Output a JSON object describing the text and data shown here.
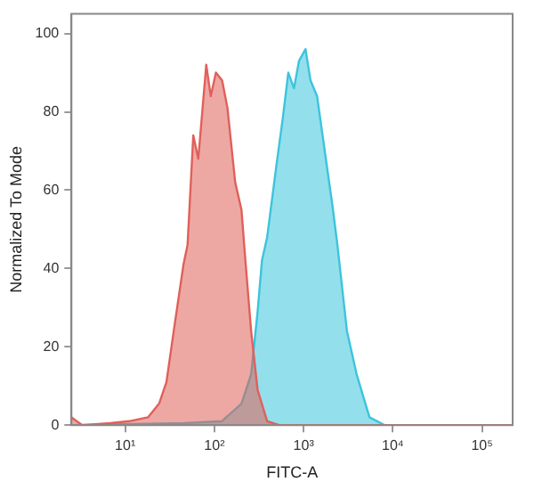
{
  "chart_data": {
    "type": "area",
    "xlabel": "FITC-A",
    "ylabel": "Normalized To Mode",
    "log": "x",
    "grid": false,
    "legend": false,
    "xlim": [
      2.5,
      220000
    ],
    "ylim": [
      0,
      105
    ],
    "xticks": [
      {
        "value": 10,
        "label": "10¹"
      },
      {
        "value": 100,
        "label": "10²"
      },
      {
        "value": 1000,
        "label": "10³"
      },
      {
        "value": 10000,
        "label": "10⁴"
      },
      {
        "value": 100000,
        "label": "10⁵"
      }
    ],
    "yticks": [
      0,
      20,
      40,
      60,
      80,
      100
    ],
    "series": [
      {
        "color": "#e0605a",
        "x": [
          2.5,
          3.3,
          6.8,
          11,
          18,
          24,
          29,
          35,
          45,
          50,
          58,
          66,
          81,
          91,
          104,
          122,
          140,
          171,
          201,
          219,
          258,
          305,
          390,
          533,
          220000
        ],
        "values": [
          2,
          0,
          0.5,
          1,
          2,
          5.5,
          11,
          24,
          41,
          46,
          74,
          68,
          92,
          84,
          90,
          88,
          81,
          62,
          55,
          44,
          24,
          9,
          1,
          0,
          0
        ]
      },
      {
        "color": "#3cc4dc",
        "x": [
          2.5,
          45,
          121,
          201,
          258,
          305,
          341,
          390,
          500,
          589,
          673,
          780,
          887,
          1050,
          1195,
          1415,
          1725,
          2105,
          2390,
          3060,
          3925,
          5470,
          8130,
          220000
        ],
        "values": [
          0,
          0.5,
          1,
          5.5,
          13,
          29,
          42,
          48,
          67,
          79,
          90,
          86,
          93,
          96,
          88,
          84,
          70,
          56,
          46,
          24,
          13,
          2,
          0,
          0
        ]
      }
    ]
  }
}
